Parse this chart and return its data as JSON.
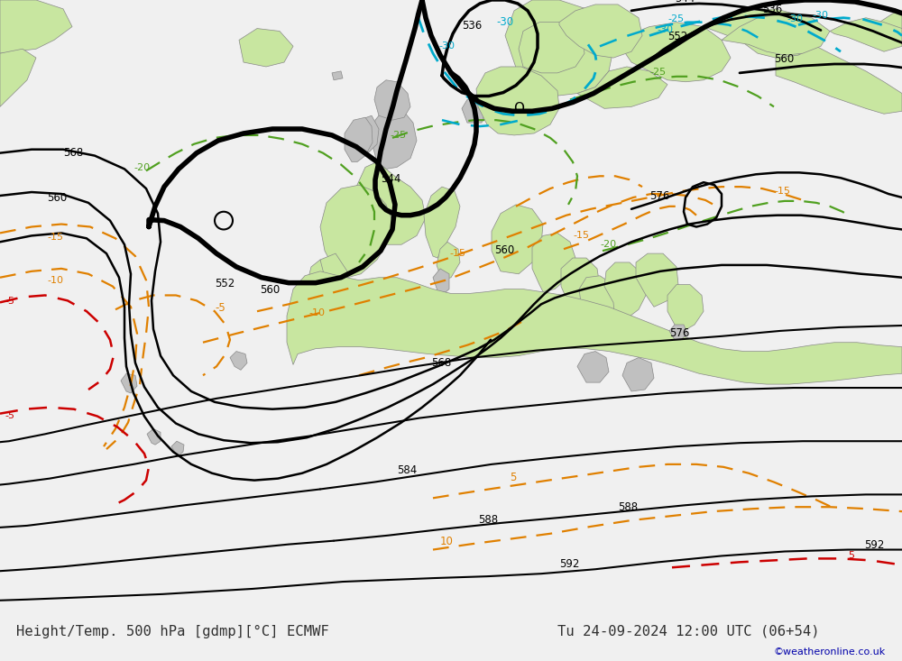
{
  "title_left": "Height/Temp. 500 hPa [gdmp][°C] ECMWF",
  "title_right": "Tu 24-09-2024 12:00 UTC (06+54)",
  "watermark": "©weatheronline.co.uk",
  "fig_width": 10.0,
  "fig_height": 7.33,
  "bg_color": "#f0f0f0",
  "land_green": "#c8e6a0",
  "land_gray": "#c0c0c0",
  "sea_color": "#dcdcdc",
  "c_black": "#000000",
  "c_orange": "#e08000",
  "c_cyan": "#00aacc",
  "c_green": "#50a020",
  "c_red": "#cc0000",
  "c_white": "#ffffff",
  "c_text": "#303030",
  "c_wmark": "#0000aa"
}
